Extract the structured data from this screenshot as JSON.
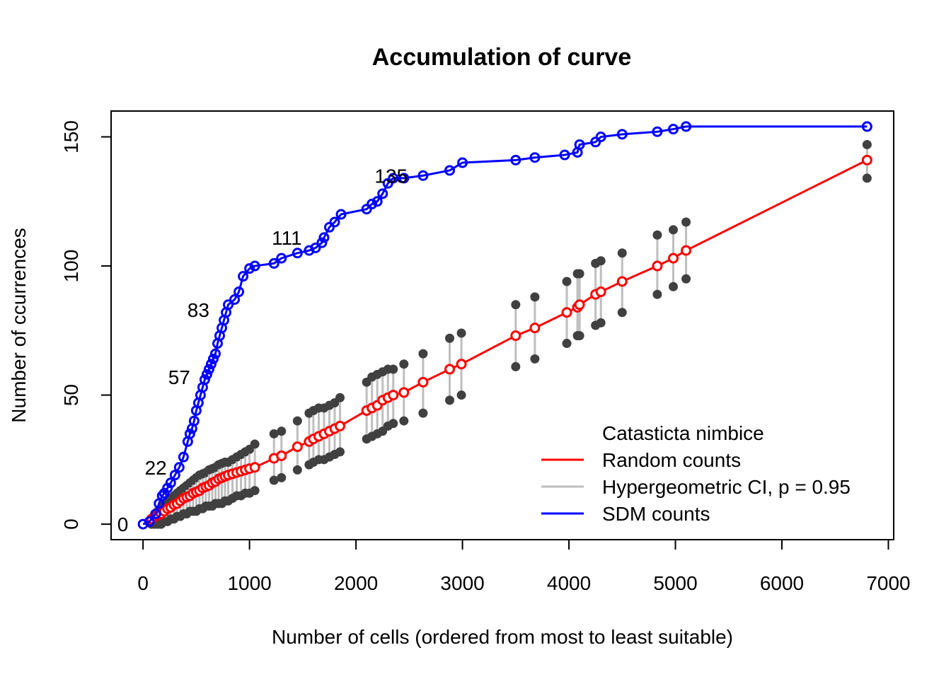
{
  "chart_data": {
    "type": "line",
    "title": "Accumulation of curve",
    "xlabel": "Number of cells (ordered from most to least suitable)",
    "ylabel": "Number of ccurrences",
    "xlim": [
      -300,
      7050
    ],
    "ylim": [
      -6,
      160
    ],
    "xticks": [
      0,
      1000,
      2000,
      3000,
      4000,
      5000,
      6000,
      7000
    ],
    "yticks": [
      0,
      50,
      100,
      150
    ],
    "grid": false,
    "legend": {
      "placement": "bottom-right",
      "title": "Catasticta nimbice",
      "entries": [
        {
          "label": "Random counts",
          "color": "#ff0000"
        },
        {
          "label": "Hypergeometric CI, p = 0.95",
          "color": "#bebebe"
        },
        {
          "label": "SDM counts",
          "color": "#0000ff"
        }
      ]
    },
    "annotations": [
      {
        "text": "0",
        "x": -190,
        "y": 0
      },
      {
        "text": "22",
        "x": 120,
        "y": 22
      },
      {
        "text": "57",
        "x": 340,
        "y": 57
      },
      {
        "text": "83",
        "x": 520,
        "y": 83
      },
      {
        "text": "111",
        "x": 1350,
        "y": 111
      },
      {
        "text": "135",
        "x": 2330,
        "y": 135
      }
    ],
    "series": [
      {
        "name": "SDM counts",
        "color": "#0000ff",
        "x": [
          0,
          60,
          120,
          150,
          180,
          200,
          230,
          260,
          300,
          340,
          380,
          420,
          440,
          460,
          480,
          500,
          520,
          540,
          560,
          580,
          600,
          620,
          640,
          660,
          680,
          700,
          720,
          740,
          760,
          780,
          800,
          860,
          900,
          940,
          1000,
          1050,
          1230,
          1300,
          1450,
          1560,
          1620,
          1680,
          1700,
          1750,
          1800,
          1860,
          2100,
          2150,
          2200,
          2250,
          2300,
          2350,
          2450,
          2630,
          2880,
          3000,
          3500,
          3680,
          3960,
          4080,
          4100,
          4250,
          4300,
          4500,
          4830,
          4980,
          5100,
          6800
        ],
        "values": [
          0,
          1,
          4,
          8,
          11,
          12,
          14,
          16,
          19,
          22,
          26,
          32,
          35,
          37,
          40,
          44,
          47,
          50,
          53,
          56,
          58,
          60,
          62,
          64,
          66,
          70,
          73,
          76,
          79,
          82,
          85,
          87,
          90,
          96,
          99,
          100,
          101,
          103,
          105,
          106,
          107,
          109,
          111,
          115,
          117,
          120,
          122,
          124,
          125,
          128,
          132,
          134,
          134,
          135,
          137,
          140,
          141,
          142,
          143,
          144,
          147,
          148,
          150,
          151,
          152,
          153,
          154,
          154
        ]
      },
      {
        "name": "Random counts",
        "color": "#ff0000",
        "x": [
          80,
          110,
          140,
          170,
          200,
          230,
          260,
          290,
          320,
          350,
          380,
          410,
          440,
          470,
          500,
          530,
          560,
          590,
          620,
          650,
          680,
          710,
          740,
          770,
          800,
          840,
          880,
          920,
          960,
          1000,
          1050,
          1230,
          1300,
          1450,
          1560,
          1600,
          1650,
          1700,
          1750,
          1800,
          1850,
          2100,
          2150,
          2200,
          2250,
          2300,
          2350,
          2450,
          2630,
          2880,
          2990,
          3500,
          3680,
          3980,
          4080,
          4100,
          4250,
          4300,
          4500,
          4830,
          4980,
          5100,
          6800
        ],
        "values": [
          2,
          3,
          3.5,
          4,
          5,
          6,
          6.5,
          7.5,
          8,
          9,
          10,
          10.5,
          11,
          12,
          12.5,
          13,
          14,
          14.5,
          15,
          16,
          16.5,
          17.5,
          18,
          18.5,
          19,
          19.5,
          20,
          20.5,
          21,
          21.5,
          22,
          25.5,
          26.5,
          30,
          32,
          33,
          34,
          35,
          36,
          37,
          38,
          44,
          45,
          46,
          48,
          49,
          50,
          51,
          55,
          60,
          62,
          73,
          76,
          82,
          84,
          85,
          89,
          90,
          94,
          100,
          103,
          106,
          141
        ]
      }
    ],
    "ci_upper": [
      2,
      4,
      5,
      6,
      8,
      9,
      10,
      11,
      12,
      13,
      14,
      15,
      16,
      17,
      18,
      19,
      19.5,
      20,
      21,
      21.5,
      22,
      23,
      23.5,
      24,
      24,
      25,
      26,
      27,
      28,
      29,
      31,
      35,
      36,
      40,
      43,
      44,
      45,
      45,
      46,
      47,
      49,
      55,
      57,
      58,
      59,
      60,
      60,
      62,
      66,
      72,
      74,
      85,
      88,
      94,
      97,
      97,
      101,
      102,
      105,
      112,
      114,
      117,
      147
    ],
    "ci_lower": [
      0,
      0,
      0,
      0,
      1,
      1,
      2,
      2,
      3,
      3,
      4,
      4,
      5,
      5,
      5,
      6,
      6,
      7,
      7,
      7,
      8,
      8,
      8,
      9,
      9,
      10,
      11,
      11,
      12,
      12,
      13,
      17,
      18,
      21,
      23,
      24,
      25,
      25,
      26,
      27,
      28,
      33,
      34,
      35,
      36,
      38,
      39,
      40,
      43,
      48,
      50,
      61,
      64,
      70,
      73,
      73,
      77,
      78,
      82,
      89,
      92,
      95,
      134
    ]
  }
}
